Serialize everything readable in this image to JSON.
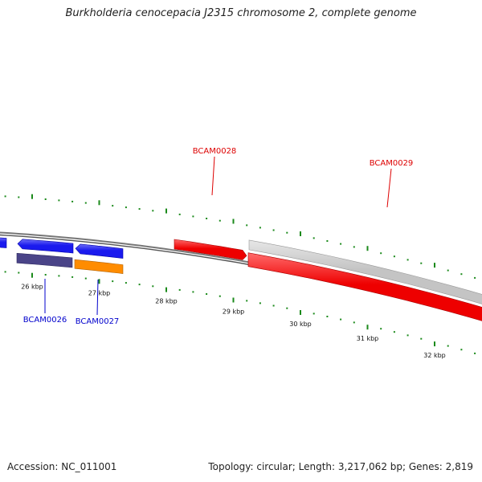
{
  "title": "Burkholderia cenocepacia J2315 chromosome 2, complete genome",
  "footer": {
    "accession": "Accession: NC_011001",
    "summary": "Topology: circular; Length: 3,217,062 bp; Genes: 2,819"
  },
  "colors": {
    "forward_gene": "#ee0000",
    "forward_gene_light": "#ff6b6b",
    "reverse_gene": "#1a1aee",
    "reverse_gene_light": "#6f6ff7",
    "other_gene": "#c4c4c4",
    "cds_purple": "#4a4488",
    "cds_orange": "#ff8c00",
    "backbone": "#777777",
    "tick": "#1b8a1b",
    "label_red": "#dd0000",
    "label_blue": "#0000cc"
  },
  "ticks": [
    {
      "kbp": 26,
      "label": "26 kbp"
    },
    {
      "kbp": 27,
      "label": "27 kbp"
    },
    {
      "kbp": 28,
      "label": "28 kbp"
    },
    {
      "kbp": 29,
      "label": "29 kbp"
    },
    {
      "kbp": 30,
      "label": "30 kbp"
    },
    {
      "kbp": 31,
      "label": "31 kbp"
    },
    {
      "kbp": 32,
      "label": "32 kbp"
    }
  ],
  "genes": [
    {
      "name": "BCAM0026",
      "strand": "reverse"
    },
    {
      "name": "BCAM0027",
      "strand": "reverse"
    },
    {
      "name": "BCAM0028",
      "strand": "forward"
    },
    {
      "name": "BCAM0029",
      "strand": "forward"
    }
  ]
}
